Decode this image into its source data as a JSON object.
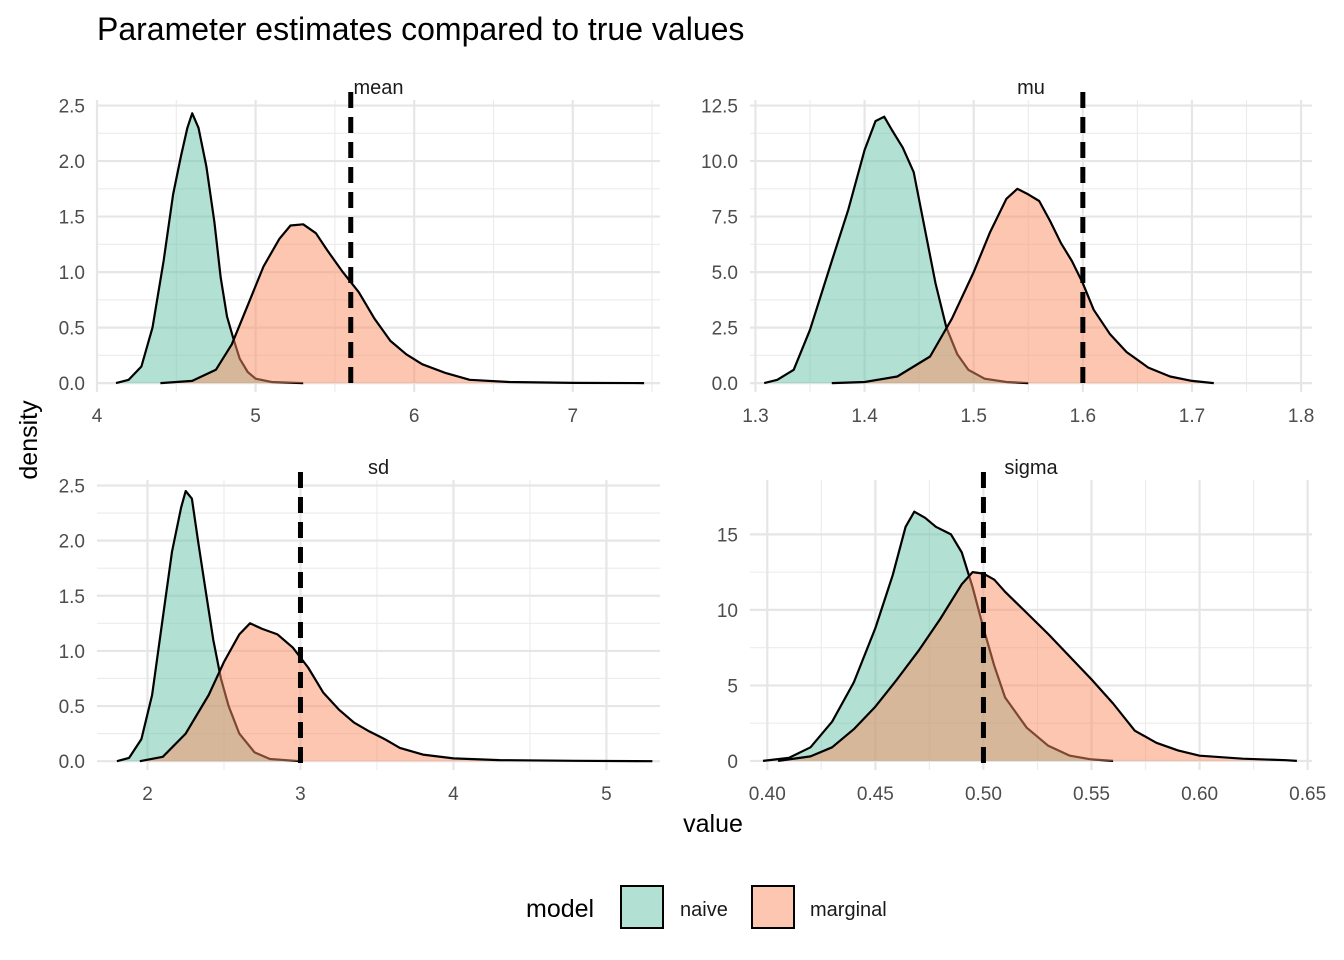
{
  "chart_data": {
    "type": "area",
    "title": "Parameter estimates compared to true values",
    "xlabel": "value",
    "ylabel": "density",
    "legend": {
      "title": "model",
      "position": "bottom",
      "items": [
        {
          "label": "naive",
          "color": "#66c2a5"
        },
        {
          "label": "marginal",
          "color": "#fc8d62"
        }
      ]
    },
    "fill_opacity": 0.5,
    "outline_color": "#000000",
    "true_line_color": "#000000",
    "grid": true,
    "panels": [
      {
        "strip": "mean",
        "true_value": 5.6,
        "xlim": [
          4.0,
          7.55
        ],
        "ylim": [
          -0.08,
          2.55
        ],
        "x_ticks": [
          4,
          5,
          6,
          7
        ],
        "x_tick_labels": [
          "4",
          "5",
          "6",
          "7"
        ],
        "y_ticks": [
          0,
          0.5,
          1,
          1.5,
          2,
          2.5
        ],
        "y_tick_labels": [
          "0.0",
          "0.5",
          "1.0",
          "1.5",
          "2.0",
          "2.5"
        ],
        "series": [
          {
            "name": "naive",
            "points": [
              [
                4.12,
                0
              ],
              [
                4.2,
                0.03
              ],
              [
                4.28,
                0.15
              ],
              [
                4.35,
                0.5
              ],
              [
                4.42,
                1.1
              ],
              [
                4.48,
                1.7
              ],
              [
                4.53,
                2.05
              ],
              [
                4.57,
                2.3
              ],
              [
                4.6,
                2.43
              ],
              [
                4.64,
                2.3
              ],
              [
                4.69,
                1.95
              ],
              [
                4.74,
                1.45
              ],
              [
                4.78,
                0.95
              ],
              [
                4.82,
                0.6
              ],
              [
                4.86,
                0.4
              ],
              [
                4.9,
                0.22
              ],
              [
                4.95,
                0.1
              ],
              [
                5.0,
                0.04
              ],
              [
                5.1,
                0.01
              ],
              [
                5.3,
                0
              ]
            ]
          },
          {
            "name": "marginal",
            "points": [
              [
                4.4,
                0
              ],
              [
                4.6,
                0.02
              ],
              [
                4.75,
                0.12
              ],
              [
                4.85,
                0.35
              ],
              [
                4.95,
                0.7
              ],
              [
                5.05,
                1.05
              ],
              [
                5.15,
                1.3
              ],
              [
                5.22,
                1.42
              ],
              [
                5.3,
                1.43
              ],
              [
                5.38,
                1.35
              ],
              [
                5.45,
                1.2
              ],
              [
                5.55,
                1.0
              ],
              [
                5.65,
                0.82
              ],
              [
                5.75,
                0.58
              ],
              [
                5.85,
                0.38
              ],
              [
                5.95,
                0.26
              ],
              [
                6.05,
                0.17
              ],
              [
                6.2,
                0.09
              ],
              [
                6.35,
                0.03
              ],
              [
                6.6,
                0.01
              ],
              [
                7.0,
                0.002
              ],
              [
                7.45,
                0
              ]
            ]
          }
        ]
      },
      {
        "strip": "mu",
        "true_value": 1.6,
        "xlim": [
          1.295,
          1.81
        ],
        "ylim": [
          -0.4,
          12.75
        ],
        "x_ticks": [
          1.3,
          1.4,
          1.5,
          1.6,
          1.7,
          1.8
        ],
        "x_tick_labels": [
          "1.3",
          "1.4",
          "1.5",
          "1.6",
          "1.7",
          "1.8"
        ],
        "y_ticks": [
          0,
          2.5,
          5,
          7.5,
          10,
          12.5
        ],
        "y_tick_labels": [
          "0.0",
          "2.5",
          "5.0",
          "7.5",
          "10.0",
          "12.5"
        ],
        "series": [
          {
            "name": "naive",
            "points": [
              [
                1.308,
                0
              ],
              [
                1.32,
                0.15
              ],
              [
                1.335,
                0.6
              ],
              [
                1.35,
                2.4
              ],
              [
                1.37,
                5.5
              ],
              [
                1.385,
                7.8
              ],
              [
                1.4,
                10.5
              ],
              [
                1.41,
                11.8
              ],
              [
                1.418,
                12.0
              ],
              [
                1.425,
                11.4
              ],
              [
                1.435,
                10.6
              ],
              [
                1.445,
                9.5
              ],
              [
                1.455,
                7.0
              ],
              [
                1.465,
                4.5
              ],
              [
                1.475,
                2.5
              ],
              [
                1.485,
                1.3
              ],
              [
                1.495,
                0.6
              ],
              [
                1.51,
                0.2
              ],
              [
                1.53,
                0.05
              ],
              [
                1.55,
                0
              ]
            ]
          },
          {
            "name": "marginal",
            "points": [
              [
                1.37,
                0
              ],
              [
                1.4,
                0.05
              ],
              [
                1.43,
                0.3
              ],
              [
                1.46,
                1.2
              ],
              [
                1.48,
                2.9
              ],
              [
                1.5,
                5.0
              ],
              [
                1.515,
                6.8
              ],
              [
                1.53,
                8.3
              ],
              [
                1.54,
                8.75
              ],
              [
                1.55,
                8.5
              ],
              [
                1.56,
                8.2
              ],
              [
                1.57,
                7.3
              ],
              [
                1.58,
                6.3
              ],
              [
                1.59,
                5.5
              ],
              [
                1.6,
                4.5
              ],
              [
                1.61,
                3.3
              ],
              [
                1.625,
                2.2
              ],
              [
                1.64,
                1.4
              ],
              [
                1.66,
                0.7
              ],
              [
                1.68,
                0.3
              ],
              [
                1.7,
                0.1
              ],
              [
                1.72,
                0
              ]
            ]
          }
        ]
      },
      {
        "strip": "sd",
        "true_value": 3.0,
        "xlim": [
          1.67,
          5.35
        ],
        "ylim": [
          -0.08,
          2.55
        ],
        "x_ticks": [
          2,
          3,
          4,
          5
        ],
        "x_tick_labels": [
          "2",
          "3",
          "4",
          "5"
        ],
        "y_ticks": [
          0,
          0.5,
          1,
          1.5,
          2,
          2.5
        ],
        "y_tick_labels": [
          "0.0",
          "0.5",
          "1.0",
          "1.5",
          "2.0",
          "2.5"
        ],
        "series": [
          {
            "name": "naive",
            "points": [
              [
                1.8,
                0
              ],
              [
                1.88,
                0.03
              ],
              [
                1.96,
                0.2
              ],
              [
                2.03,
                0.6
              ],
              [
                2.1,
                1.3
              ],
              [
                2.16,
                1.9
              ],
              [
                2.22,
                2.3
              ],
              [
                2.25,
                2.45
              ],
              [
                2.29,
                2.38
              ],
              [
                2.33,
                2.0
              ],
              [
                2.38,
                1.55
              ],
              [
                2.43,
                1.1
              ],
              [
                2.48,
                0.75
              ],
              [
                2.53,
                0.5
              ],
              [
                2.6,
                0.25
              ],
              [
                2.7,
                0.08
              ],
              [
                2.8,
                0.02
              ],
              [
                3.0,
                0
              ]
            ]
          },
          {
            "name": "marginal",
            "points": [
              [
                1.95,
                0
              ],
              [
                2.1,
                0.04
              ],
              [
                2.25,
                0.25
              ],
              [
                2.4,
                0.6
              ],
              [
                2.5,
                0.9
              ],
              [
                2.6,
                1.15
              ],
              [
                2.67,
                1.25
              ],
              [
                2.75,
                1.2
              ],
              [
                2.85,
                1.15
              ],
              [
                2.95,
                1.03
              ],
              [
                3.05,
                0.85
              ],
              [
                3.15,
                0.62
              ],
              [
                3.25,
                0.47
              ],
              [
                3.35,
                0.35
              ],
              [
                3.45,
                0.27
              ],
              [
                3.55,
                0.2
              ],
              [
                3.65,
                0.12
              ],
              [
                3.8,
                0.06
              ],
              [
                4.0,
                0.025
              ],
              [
                4.3,
                0.01
              ],
              [
                4.8,
                0.003
              ],
              [
                5.3,
                0
              ]
            ]
          }
        ]
      },
      {
        "strip": "sigma",
        "true_value": 0.5,
        "xlim": [
          0.392,
          0.652
        ],
        "ylim": [
          -0.6,
          18.6
        ],
        "x_ticks": [
          0.4,
          0.45,
          0.5,
          0.55,
          0.6,
          0.65
        ],
        "x_tick_labels": [
          "0.40",
          "0.45",
          "0.50",
          "0.55",
          "0.60",
          "0.65"
        ],
        "y_ticks": [
          0,
          5,
          10,
          15
        ],
        "y_tick_labels": [
          "0",
          "5",
          "10",
          "15"
        ],
        "series": [
          {
            "name": "naive",
            "points": [
              [
                0.398,
                0
              ],
              [
                0.41,
                0.2
              ],
              [
                0.42,
                0.9
              ],
              [
                0.43,
                2.6
              ],
              [
                0.44,
                5.2
              ],
              [
                0.45,
                8.8
              ],
              [
                0.458,
                12.3
              ],
              [
                0.464,
                15.5
              ],
              [
                0.468,
                16.5
              ],
              [
                0.473,
                16.1
              ],
              [
                0.478,
                15.5
              ],
              [
                0.485,
                15.0
              ],
              [
                0.49,
                13.8
              ],
              [
                0.495,
                11.5
              ],
              [
                0.5,
                8.8
              ],
              [
                0.505,
                6.3
              ],
              [
                0.51,
                4.2
              ],
              [
                0.52,
                2.2
              ],
              [
                0.53,
                1.0
              ],
              [
                0.54,
                0.35
              ],
              [
                0.55,
                0.1
              ],
              [
                0.56,
                0
              ]
            ]
          },
          {
            "name": "marginal",
            "points": [
              [
                0.405,
                0
              ],
              [
                0.42,
                0.3
              ],
              [
                0.43,
                0.9
              ],
              [
                0.44,
                2.1
              ],
              [
                0.45,
                3.6
              ],
              [
                0.46,
                5.4
              ],
              [
                0.47,
                7.3
              ],
              [
                0.48,
                9.4
              ],
              [
                0.49,
                11.7
              ],
              [
                0.495,
                12.5
              ],
              [
                0.5,
                12.4
              ],
              [
                0.505,
                12.0
              ],
              [
                0.51,
                11.2
              ],
              [
                0.52,
                9.8
              ],
              [
                0.53,
                8.4
              ],
              [
                0.54,
                6.9
              ],
              [
                0.55,
                5.4
              ],
              [
                0.56,
                3.8
              ],
              [
                0.57,
                2.0
              ],
              [
                0.58,
                1.2
              ],
              [
                0.59,
                0.7
              ],
              [
                0.6,
                0.35
              ],
              [
                0.62,
                0.15
              ],
              [
                0.64,
                0.05
              ],
              [
                0.645,
                0
              ]
            ]
          }
        ]
      }
    ]
  }
}
